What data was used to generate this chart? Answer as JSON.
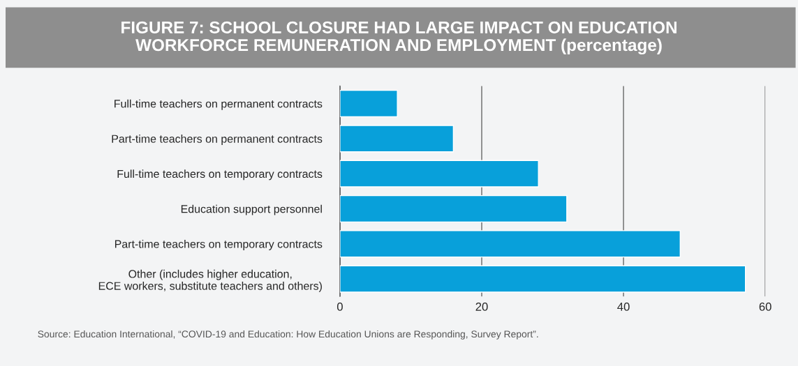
{
  "chart_data": {
    "type": "bar",
    "orientation": "horizontal",
    "title": "FIGURE 7: SCHOOL CLOSURE HAD LARGE IMPACT ON EDUCATION\nWORKFORCE REMUNERATION AND EMPLOYMENT (percentage)",
    "categories": [
      "Full-time teachers on permanent contracts",
      "Part-time teachers on permanent contracts",
      "Full-time teachers on temporary contracts",
      "Education support personnel",
      "Part-time teachers on temporary contracts",
      "Other (includes higher education,\nECE workers, substitute teachers and others)"
    ],
    "values": [
      8.1,
      16,
      28,
      32,
      48,
      57.2
    ],
    "color": "#08a0da",
    "xlim": [
      0,
      60
    ],
    "xticks": [
      0,
      20,
      40,
      60
    ],
    "grid": "x",
    "annotations": [
      "Source: Education International, “COVID-19 and Education: How Education Unions are Responding, Survey Report”."
    ]
  }
}
